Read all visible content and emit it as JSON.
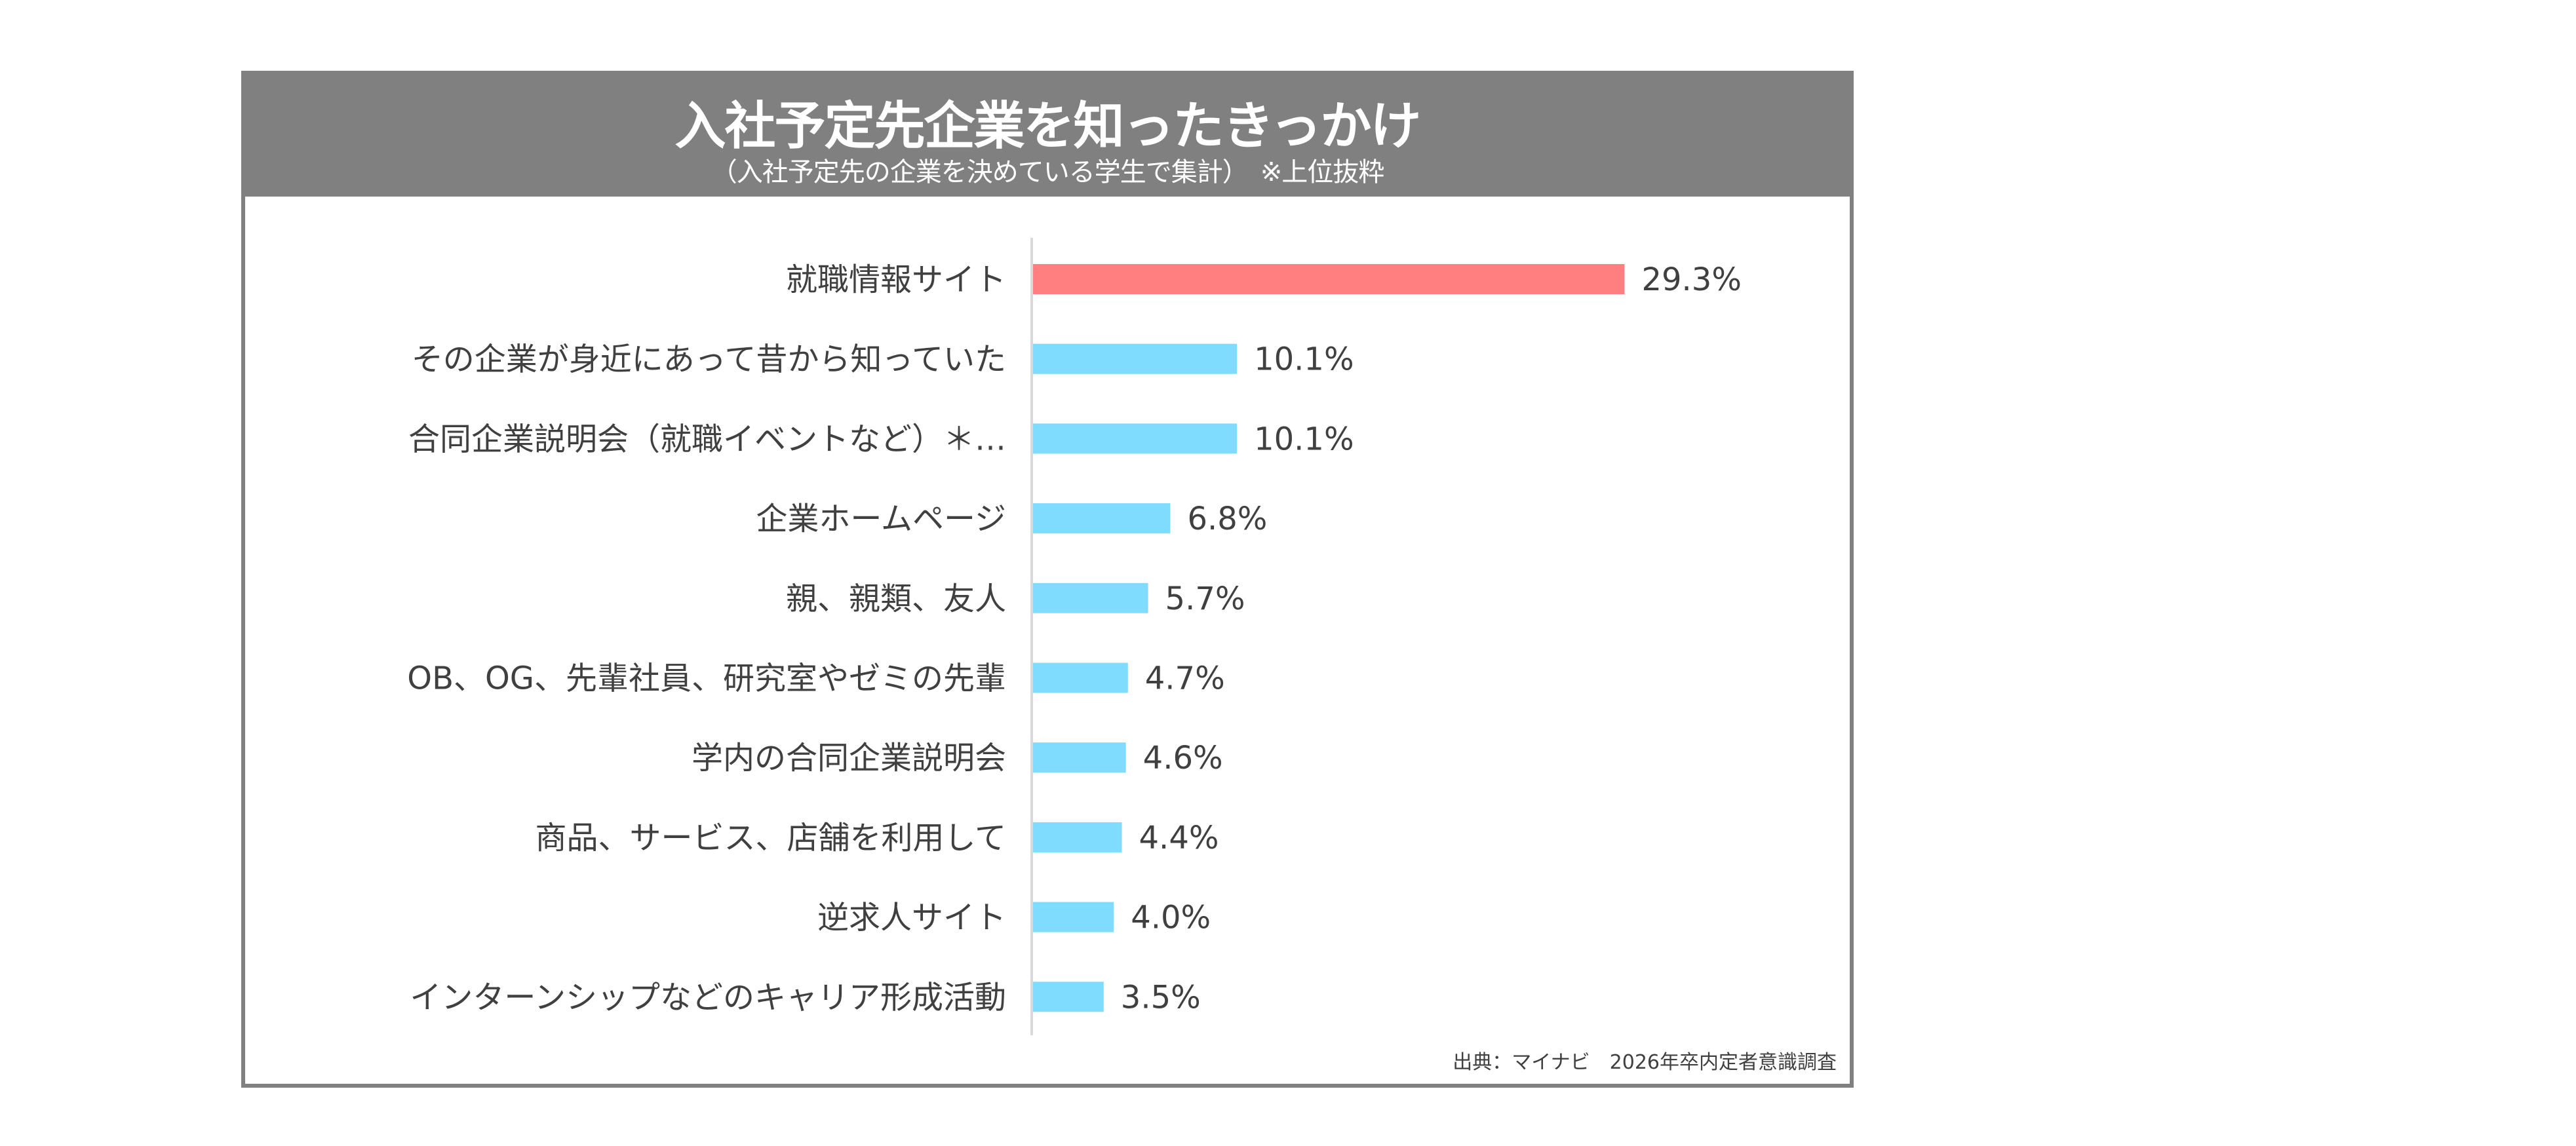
{
  "header": {
    "title": "入社予定先企業を知ったきっかけ",
    "subtitle": "（入社予定先の企業を決めている学生で集計）　※上位抜粋"
  },
  "source": "出典：マイナビ　2026年卒内定者意識調査",
  "colors": {
    "header": "#808080",
    "highlight": "#FF7F81",
    "bar": "#7FDCFF",
    "axis": "#D9D9D9",
    "text": "#404040"
  },
  "chart_data": {
    "type": "bar",
    "orientation": "horizontal",
    "title": "入社予定先企業を知ったきっかけ",
    "categories": [
      "就職情報サイト",
      "その企業が身近にあって昔から知っていた",
      "合同企業説明会（就職イベントなど）＊…",
      "企業ホームページ",
      "親、親類、友人",
      "OB、OG、先輩社員、研究室やゼミの先輩",
      "学内の合同企業説明会",
      "商品、サービス、店舗を利用して",
      "逆求人サイト",
      "インターンシップなどのキャリア形成活動"
    ],
    "values": [
      29.3,
      10.1,
      10.1,
      6.8,
      5.7,
      4.7,
      4.6,
      4.4,
      4.0,
      3.5
    ],
    "data_labels": [
      "29.3%",
      "10.1%",
      "10.1%",
      "6.8%",
      "5.7%",
      "4.7%",
      "4.6%",
      "4.4%",
      "4.0%",
      "3.5%"
    ],
    "highlighted_index": 0,
    "unit": "%",
    "grid": false,
    "legend": "none"
  }
}
